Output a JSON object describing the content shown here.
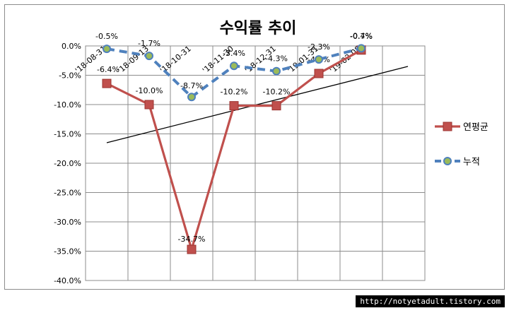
{
  "chart_data": {
    "type": "line",
    "title": "수익률 추이",
    "categories": [
      "'18-08-31",
      "'18-09-13",
      "'18-10-31",
      "'18-11-30",
      "'18-12-31",
      "'19-01-31",
      "'19-02-08"
    ],
    "ylim": [
      -40,
      0
    ],
    "ytick_step": 5,
    "ytick_labels": [
      "0.0%",
      "-5.0%",
      "-10.0%",
      "-15.0%",
      "-20.0%",
      "-25.0%",
      "-30.0%",
      "-35.0%",
      "-40.0%"
    ],
    "grid": true,
    "legend_position": "right",
    "series": [
      {
        "name": "연평균",
        "color": "#c0504d",
        "marker": "square",
        "values": [
          -6.4,
          -10.0,
          -34.7,
          -10.2,
          -10.2,
          -4.7,
          -0.7
        ],
        "labels": [
          "-6.4%",
          "-10.0%",
          "-34.7%",
          "-10.2%",
          "-10.2%",
          "-4.7%",
          "-0.7%"
        ]
      },
      {
        "name": "누적",
        "color": "#4f81bd",
        "marker_color": "#9bbb59",
        "marker": "circle",
        "line_style": "dashed",
        "values": [
          -0.5,
          -1.7,
          -8.7,
          -3.4,
          -4.3,
          -2.3,
          -0.4
        ],
        "labels": [
          "-0.5%",
          "-1.7%",
          "-8.7%",
          "-3.4%",
          "-4.3%",
          "-2.3%",
          "-0.4%"
        ]
      }
    ],
    "trendline": {
      "color": "#000000",
      "start_value": -16.5,
      "end_value": -3.5
    }
  },
  "watermark": "http://notyetadult.tistory.com"
}
